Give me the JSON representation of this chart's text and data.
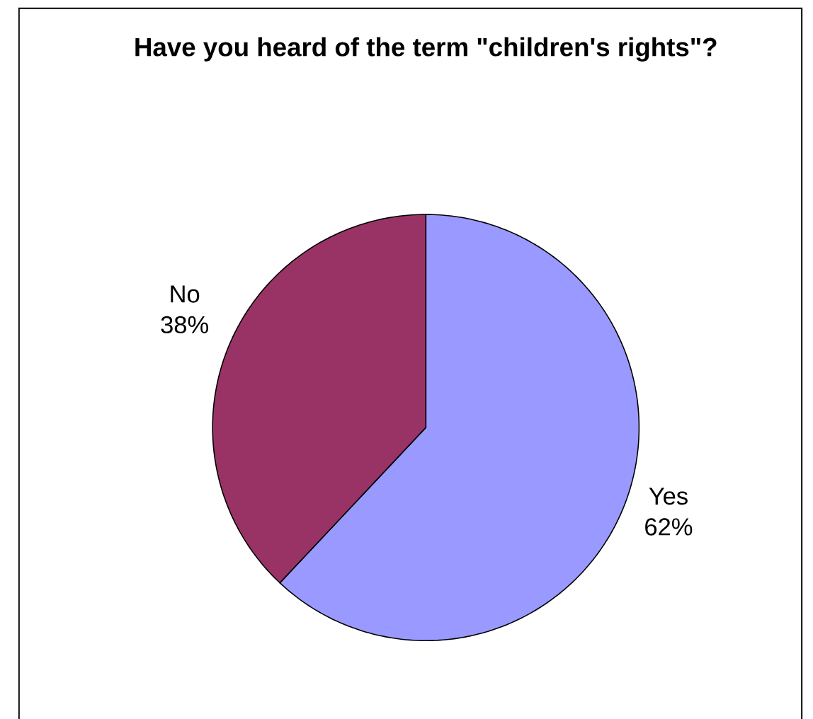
{
  "chart_data": {
    "type": "pie",
    "title": "Have you heard of the term \"children's rights\"?",
    "categories": [
      "Yes",
      "No"
    ],
    "values": [
      62,
      38
    ],
    "colors": [
      "#9999ff",
      "#993366"
    ],
    "value_labels": [
      "62%",
      "38%"
    ]
  }
}
